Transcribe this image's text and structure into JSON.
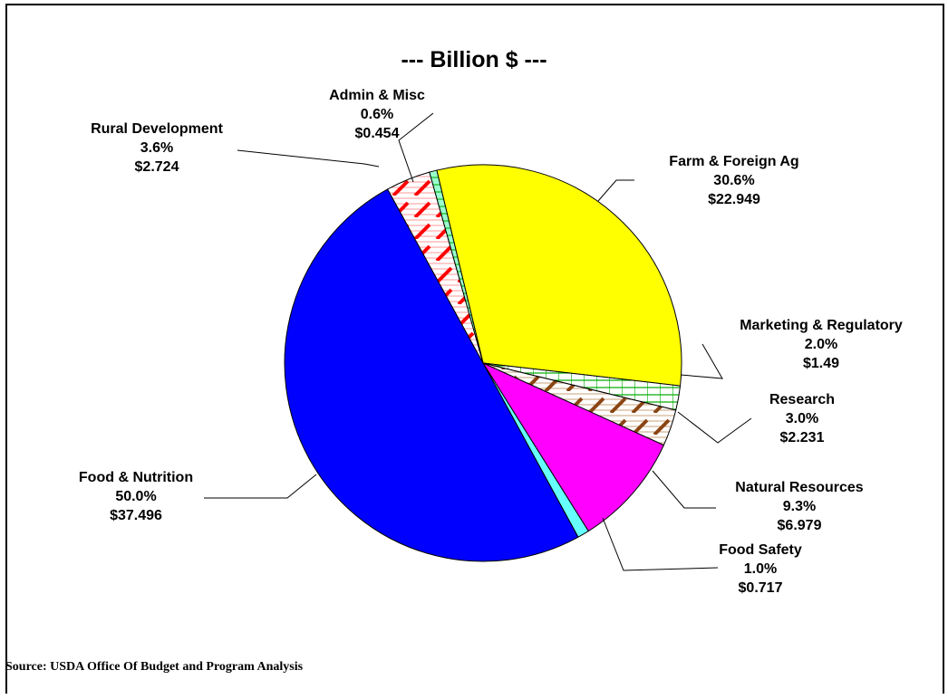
{
  "chart_data": {
    "type": "pie",
    "title": "--- Billion $ ---",
    "slices": [
      {
        "name": "Farm & Foreign Ag",
        "percent_label": "30.6%",
        "value_label": "$22.949",
        "value": 22.949,
        "color": "#ffff00",
        "pattern": "none"
      },
      {
        "name": "Marketing & Regulatory",
        "percent_label": "2.0%",
        "value_label": "$1.49",
        "value": 1.49,
        "color": "#00aa00",
        "pattern": "grid"
      },
      {
        "name": "Research",
        "percent_label": "3.0%",
        "value_label": "$2.231",
        "value": 2.231,
        "color": "#8b4513",
        "pattern": "hatch"
      },
      {
        "name": "Natural Resources",
        "percent_label": "9.3%",
        "value_label": "$6.979",
        "value": 6.979,
        "color": "#ff00ff",
        "pattern": "none"
      },
      {
        "name": "Food Safety",
        "percent_label": "1.0%",
        "value_label": "$0.717",
        "value": 0.717,
        "color": "#66ffff",
        "pattern": "none"
      },
      {
        "name": "Food & Nutrition",
        "percent_label": "50.0%",
        "value_label": "$37.496",
        "value": 37.496,
        "color": "#0000ff",
        "pattern": "none"
      },
      {
        "name": "Rural Development",
        "percent_label": "3.6%",
        "value_label": "$2.724",
        "value": 2.724,
        "color": "#ff0000",
        "pattern": "hatch"
      },
      {
        "name": "Admin & Misc",
        "percent_label": "0.6%",
        "value_label": "$0.454",
        "value": 0.454,
        "color": "#99ffcc",
        "pattern": "hatch-green"
      }
    ]
  },
  "footer": {
    "source": "Source: USDA Office Of Budget and Program Analysis"
  }
}
